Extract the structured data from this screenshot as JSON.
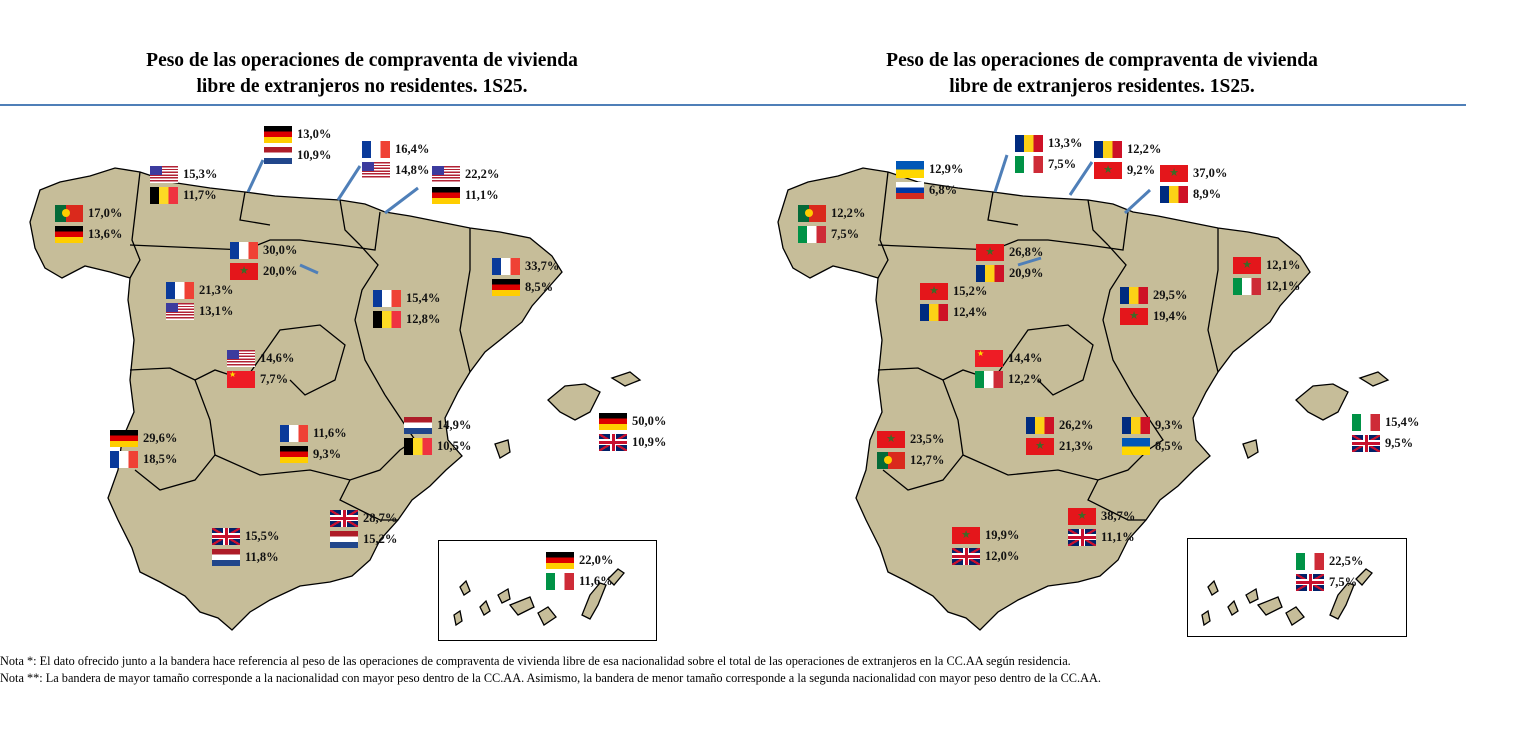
{
  "maps": [
    {
      "title_line1": "Peso de las operaciones de compraventa de vivienda",
      "title_line2": "libre de extranjeros no residentes. 1S25.",
      "regions": [
        {
          "region": "galicia",
          "flags": [
            {
              "country": "portugal",
              "value": "17,0%"
            },
            {
              "country": "germany",
              "value": "13,6%"
            }
          ]
        },
        {
          "region": "asturias",
          "flags": [
            {
              "country": "usa",
              "value": "15,3%"
            },
            {
              "country": "belgium",
              "value": "11,7%"
            }
          ]
        },
        {
          "region": "cantabria",
          "flags": [
            {
              "country": "germany",
              "value": "13,0%"
            },
            {
              "country": "netherlands",
              "value": "10,9%"
            }
          ]
        },
        {
          "region": "pais-vasco",
          "flags": [
            {
              "country": "france",
              "value": "16,4%"
            },
            {
              "country": "usa",
              "value": "14,8%"
            }
          ]
        },
        {
          "region": "navarra",
          "flags": [
            {
              "country": "usa",
              "value": "22,2%"
            },
            {
              "country": "germany",
              "value": "11,1%"
            }
          ]
        },
        {
          "region": "la-rioja",
          "flags": [
            {
              "country": "france",
              "value": "30,0%"
            },
            {
              "country": "morocco",
              "value": "20,0%"
            }
          ]
        },
        {
          "region": "castilla-y-leon",
          "flags": [
            {
              "country": "france",
              "value": "21,3%"
            },
            {
              "country": "usa",
              "value": "13,1%"
            }
          ]
        },
        {
          "region": "aragon",
          "flags": [
            {
              "country": "france",
              "value": "15,4%"
            },
            {
              "country": "belgium",
              "value": "12,8%"
            }
          ]
        },
        {
          "region": "cataluna",
          "flags": [
            {
              "country": "france",
              "value": "33,7%"
            },
            {
              "country": "germany",
              "value": "8,5%"
            }
          ]
        },
        {
          "region": "madrid",
          "flags": [
            {
              "country": "usa",
              "value": "14,6%"
            },
            {
              "country": "china",
              "value": "7,7%"
            }
          ]
        },
        {
          "region": "extremadura",
          "flags": [
            {
              "country": "germany",
              "value": "29,6%"
            },
            {
              "country": "france",
              "value": "18,5%"
            }
          ]
        },
        {
          "region": "castilla-la-mancha",
          "flags": [
            {
              "country": "france",
              "value": "11,6%"
            },
            {
              "country": "germany",
              "value": "9,3%"
            }
          ]
        },
        {
          "region": "comunitat-valenciana",
          "flags": [
            {
              "country": "netherlands",
              "value": "14,9%"
            },
            {
              "country": "belgium",
              "value": "10,5%"
            }
          ]
        },
        {
          "region": "baleares",
          "flags": [
            {
              "country": "germany",
              "value": "50,0%"
            },
            {
              "country": "uk",
              "value": "10,9%"
            }
          ]
        },
        {
          "region": "andalucia",
          "flags": [
            {
              "country": "uk",
              "value": "15,5%"
            },
            {
              "country": "netherlands",
              "value": "11,8%"
            }
          ]
        },
        {
          "region": "murcia",
          "flags": [
            {
              "country": "uk",
              "value": "28,7%"
            },
            {
              "country": "netherlands",
              "value": "15,2%"
            }
          ]
        },
        {
          "region": "canarias",
          "flags": [
            {
              "country": "germany",
              "value": "22,0%"
            },
            {
              "country": "italy",
              "value": "11,6%"
            }
          ]
        }
      ]
    },
    {
      "title_line1": "Peso de las operaciones de compraventa de vivienda",
      "title_line2": "libre de extranjeros residentes. 1S25.",
      "regions": [
        {
          "region": "galicia",
          "flags": [
            {
              "country": "portugal",
              "value": "12,2%"
            },
            {
              "country": "italy",
              "value": "7,5%"
            }
          ]
        },
        {
          "region": "asturias",
          "flags": [
            {
              "country": "ukraine",
              "value": "12,9%"
            },
            {
              "country": "russia",
              "value": "6,8%"
            }
          ]
        },
        {
          "region": "cantabria",
          "flags": [
            {
              "country": "romania",
              "value": "13,3%"
            },
            {
              "country": "italy",
              "value": "7,5%"
            }
          ]
        },
        {
          "region": "pais-vasco",
          "flags": [
            {
              "country": "romania",
              "value": "12,2%"
            },
            {
              "country": "morocco",
              "value": "9,2%"
            }
          ]
        },
        {
          "region": "navarra",
          "flags": [
            {
              "country": "morocco",
              "value": "37,0%"
            },
            {
              "country": "romania",
              "value": "8,9%"
            }
          ]
        },
        {
          "region": "la-rioja",
          "flags": [
            {
              "country": "morocco",
              "value": "26,8%"
            },
            {
              "country": "romania",
              "value": "20,9%"
            }
          ]
        },
        {
          "region": "castilla-y-leon",
          "flags": [
            {
              "country": "morocco",
              "value": "15,2%"
            },
            {
              "country": "romania",
              "value": "12,4%"
            }
          ]
        },
        {
          "region": "aragon",
          "flags": [
            {
              "country": "romania",
              "value": "29,5%"
            },
            {
              "country": "morocco",
              "value": "19,4%"
            }
          ]
        },
        {
          "region": "cataluna",
          "flags": [
            {
              "country": "morocco",
              "value": "12,1%"
            },
            {
              "country": "italy",
              "value": "12,1%"
            }
          ]
        },
        {
          "region": "madrid",
          "flags": [
            {
              "country": "china",
              "value": "14,4%"
            },
            {
              "country": "italy",
              "value": "12,2%"
            }
          ]
        },
        {
          "region": "extremadura",
          "flags": [
            {
              "country": "morocco",
              "value": "23,5%"
            },
            {
              "country": "portugal",
              "value": "12,7%"
            }
          ]
        },
        {
          "region": "castilla-la-mancha",
          "flags": [
            {
              "country": "romania",
              "value": "26,2%"
            },
            {
              "country": "morocco",
              "value": "21,3%"
            }
          ]
        },
        {
          "region": "comunitat-valenciana",
          "flags": [
            {
              "country": "romania",
              "value": "9,3%"
            },
            {
              "country": "ukraine",
              "value": "8,5%"
            }
          ]
        },
        {
          "region": "baleares",
          "flags": [
            {
              "country": "italy",
              "value": "15,4%"
            },
            {
              "country": "uk",
              "value": "9,5%"
            }
          ]
        },
        {
          "region": "andalucia",
          "flags": [
            {
              "country": "morocco",
              "value": "19,9%"
            },
            {
              "country": "uk",
              "value": "12,0%"
            }
          ]
        },
        {
          "region": "murcia",
          "flags": [
            {
              "country": "morocco",
              "value": "38,7%"
            },
            {
              "country": "uk",
              "value": "11,1%"
            }
          ]
        },
        {
          "region": "canarias",
          "flags": [
            {
              "country": "italy",
              "value": "22,5%"
            },
            {
              "country": "uk",
              "value": "7,5%"
            }
          ]
        }
      ]
    }
  ],
  "colors": {
    "land": "#c6bd99",
    "border": "#000000",
    "leader": "#4f7fb8",
    "rule": "#4f7fb8"
  },
  "notes": [
    "Nota *: El dato ofrecido junto a la bandera hace referencia al peso de las operaciones de compraventa de vivienda libre de esa nacionalidad sobre el total de las operaciones de extranjeros en la CC.AA según residencia.",
    "Nota **: La bandera de mayor tamaño corresponde a la nacionalidad con mayor peso dentro de la CC.AA. Asimismo, la bandera de menor tamaño corresponde a la segunda nacionalidad con mayor peso dentro de la CC.AA."
  ]
}
